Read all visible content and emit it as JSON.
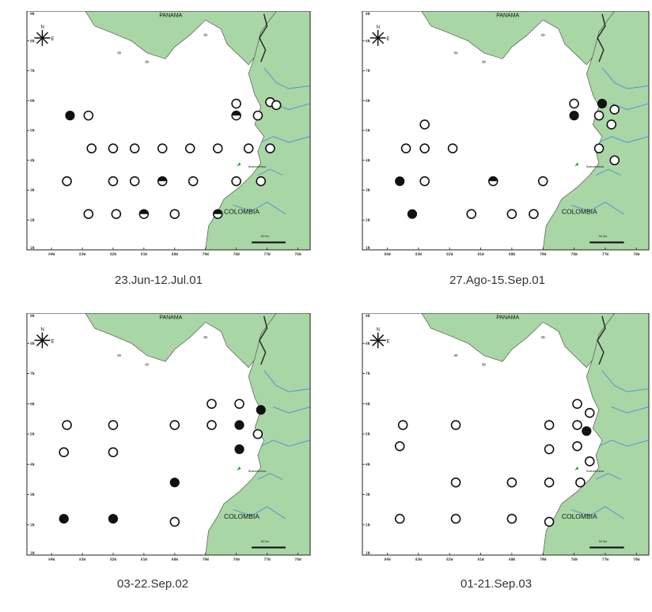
{
  "colors": {
    "land": "#a9d6a5",
    "sea": "#ffffff",
    "border": "#222222",
    "river": "#4a90d6",
    "city": "#2aa02a",
    "text": "#333333"
  },
  "labels": {
    "country_north": "PANAMA",
    "country_south": "COLOMBIA",
    "compass_n": "N",
    "compass_e": "E",
    "city": "Buenaventura",
    "scale": "50 Km"
  },
  "ticks": {
    "y": [
      "9N",
      "8N",
      "7N",
      "6N",
      "5N",
      "4N",
      "3N",
      "2N",
      "1N"
    ],
    "x": [
      "84W",
      "83W",
      "82W",
      "81W",
      "80W",
      "79W",
      "78W",
      "77W",
      "76W"
    ]
  },
  "panels": [
    {
      "caption": "23.Jun-12.Jul.01",
      "stations": [
        {
          "lon": -83.4,
          "lat": 5.5,
          "type": "filled"
        },
        {
          "lon": -82.8,
          "lat": 5.5,
          "type": "open"
        },
        {
          "lon": -78.0,
          "lat": 5.9,
          "type": "open"
        },
        {
          "lon": -76.9,
          "lat": 5.95,
          "type": "open"
        },
        {
          "lon": -78.0,
          "lat": 5.5,
          "type": "half"
        },
        {
          "lon": -77.3,
          "lat": 5.5,
          "type": "open"
        },
        {
          "lon": -76.7,
          "lat": 5.85,
          "type": "open"
        },
        {
          "lon": -82.7,
          "lat": 4.4,
          "type": "open"
        },
        {
          "lon": -82.0,
          "lat": 4.4,
          "type": "open"
        },
        {
          "lon": -81.3,
          "lat": 4.4,
          "type": "open"
        },
        {
          "lon": -80.4,
          "lat": 4.4,
          "type": "open"
        },
        {
          "lon": -79.5,
          "lat": 4.4,
          "type": "open"
        },
        {
          "lon": -78.6,
          "lat": 4.4,
          "type": "open"
        },
        {
          "lon": -77.6,
          "lat": 4.4,
          "type": "open"
        },
        {
          "lon": -76.9,
          "lat": 4.4,
          "type": "open"
        },
        {
          "lon": -83.5,
          "lat": 3.3,
          "type": "open"
        },
        {
          "lon": -82.0,
          "lat": 3.3,
          "type": "open"
        },
        {
          "lon": -81.3,
          "lat": 3.3,
          "type": "open"
        },
        {
          "lon": -80.4,
          "lat": 3.3,
          "type": "half"
        },
        {
          "lon": -79.4,
          "lat": 3.3,
          "type": "open"
        },
        {
          "lon": -78.0,
          "lat": 3.3,
          "type": "open"
        },
        {
          "lon": -77.2,
          "lat": 3.3,
          "type": "open"
        },
        {
          "lon": -82.8,
          "lat": 2.2,
          "type": "open"
        },
        {
          "lon": -81.9,
          "lat": 2.2,
          "type": "open"
        },
        {
          "lon": -81.0,
          "lat": 2.2,
          "type": "half"
        },
        {
          "lon": -80.0,
          "lat": 2.2,
          "type": "open"
        },
        {
          "lon": -78.6,
          "lat": 2.2,
          "type": "half"
        }
      ]
    },
    {
      "caption": "27.Ago-15.Sep.01",
      "stations": [
        {
          "lon": -78.0,
          "lat": 5.9,
          "type": "open"
        },
        {
          "lon": -77.1,
          "lat": 5.9,
          "type": "filled"
        },
        {
          "lon": -76.7,
          "lat": 5.7,
          "type": "open"
        },
        {
          "lon": -78.0,
          "lat": 5.5,
          "type": "filled"
        },
        {
          "lon": -77.2,
          "lat": 5.5,
          "type": "open"
        },
        {
          "lon": -82.8,
          "lat": 5.2,
          "type": "open"
        },
        {
          "lon": -76.8,
          "lat": 5.2,
          "type": "open"
        },
        {
          "lon": -83.4,
          "lat": 4.4,
          "type": "open"
        },
        {
          "lon": -82.8,
          "lat": 4.4,
          "type": "open"
        },
        {
          "lon": -81.9,
          "lat": 4.4,
          "type": "open"
        },
        {
          "lon": -77.2,
          "lat": 4.4,
          "type": "open"
        },
        {
          "lon": -76.7,
          "lat": 4.0,
          "type": "open"
        },
        {
          "lon": -83.6,
          "lat": 3.3,
          "type": "filled"
        },
        {
          "lon": -82.8,
          "lat": 3.3,
          "type": "open"
        },
        {
          "lon": -80.6,
          "lat": 3.3,
          "type": "half"
        },
        {
          "lon": -79.0,
          "lat": 3.3,
          "type": "open"
        },
        {
          "lon": -83.2,
          "lat": 2.2,
          "type": "filled"
        },
        {
          "lon": -81.3,
          "lat": 2.2,
          "type": "open"
        },
        {
          "lon": -80.0,
          "lat": 2.2,
          "type": "open"
        },
        {
          "lon": -79.3,
          "lat": 2.2,
          "type": "open"
        }
      ]
    },
    {
      "caption": "03-22.Sep.02",
      "stations": [
        {
          "lon": -78.8,
          "lat": 6.0,
          "type": "open"
        },
        {
          "lon": -77.9,
          "lat": 6.0,
          "type": "open"
        },
        {
          "lon": -77.2,
          "lat": 5.8,
          "type": "filled"
        },
        {
          "lon": -83.5,
          "lat": 5.3,
          "type": "open"
        },
        {
          "lon": -82.0,
          "lat": 5.3,
          "type": "open"
        },
        {
          "lon": -80.0,
          "lat": 5.3,
          "type": "open"
        },
        {
          "lon": -78.8,
          "lat": 5.3,
          "type": "open"
        },
        {
          "lon": -77.9,
          "lat": 5.3,
          "type": "filled"
        },
        {
          "lon": -77.3,
          "lat": 5.0,
          "type": "open"
        },
        {
          "lon": -83.6,
          "lat": 4.4,
          "type": "open"
        },
        {
          "lon": -82.0,
          "lat": 4.4,
          "type": "open"
        },
        {
          "lon": -77.9,
          "lat": 4.5,
          "type": "filled"
        },
        {
          "lon": -80.0,
          "lat": 3.4,
          "type": "filled"
        },
        {
          "lon": -83.6,
          "lat": 2.2,
          "type": "filled"
        },
        {
          "lon": -82.0,
          "lat": 2.2,
          "type": "filled"
        },
        {
          "lon": -80.0,
          "lat": 2.1,
          "type": "open"
        }
      ]
    },
    {
      "caption": "01-21.Sep.03",
      "stations": [
        {
          "lon": -77.9,
          "lat": 6.0,
          "type": "open"
        },
        {
          "lon": -77.5,
          "lat": 5.7,
          "type": "open"
        },
        {
          "lon": -83.5,
          "lat": 5.3,
          "type": "open"
        },
        {
          "lon": -81.8,
          "lat": 5.3,
          "type": "open"
        },
        {
          "lon": -78.8,
          "lat": 5.3,
          "type": "open"
        },
        {
          "lon": -77.9,
          "lat": 5.3,
          "type": "open"
        },
        {
          "lon": -77.6,
          "lat": 5.1,
          "type": "filled"
        },
        {
          "lon": -83.6,
          "lat": 4.6,
          "type": "open"
        },
        {
          "lon": -78.8,
          "lat": 4.5,
          "type": "open"
        },
        {
          "lon": -77.9,
          "lat": 4.6,
          "type": "open"
        },
        {
          "lon": -77.5,
          "lat": 4.1,
          "type": "open"
        },
        {
          "lon": -81.8,
          "lat": 3.4,
          "type": "open"
        },
        {
          "lon": -80.0,
          "lat": 3.4,
          "type": "open"
        },
        {
          "lon": -78.8,
          "lat": 3.4,
          "type": "open"
        },
        {
          "lon": -77.8,
          "lat": 3.4,
          "type": "open"
        },
        {
          "lon": -83.6,
          "lat": 2.2,
          "type": "open"
        },
        {
          "lon": -81.8,
          "lat": 2.2,
          "type": "open"
        },
        {
          "lon": -80.0,
          "lat": 2.2,
          "type": "open"
        },
        {
          "lon": -78.8,
          "lat": 2.1,
          "type": "open"
        }
      ]
    }
  ]
}
